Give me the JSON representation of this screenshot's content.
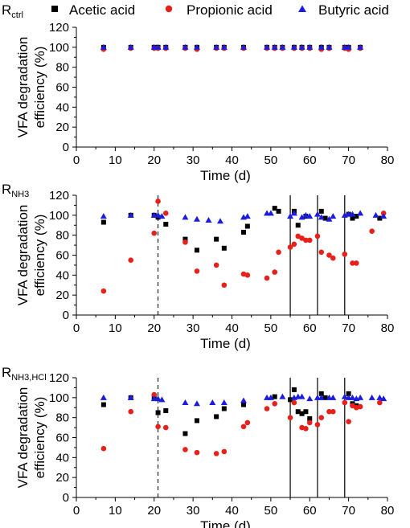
{
  "legend": {
    "panel_label_main": "R",
    "panel_label_sub": "ctrl",
    "items": [
      {
        "label": "Acetic acid",
        "marker": "square",
        "color": "#000000"
      },
      {
        "label": "Propionic acid",
        "marker": "circle",
        "color": "#e8201a"
      },
      {
        "label": "Butyric acid",
        "marker": "triangle",
        "color": "#1c1cdc"
      }
    ]
  },
  "chart_data": [
    {
      "type": "scatter",
      "panel_label_main": "",
      "panel_label_sub": "",
      "xlabel": "Time (d)",
      "ylabel_line1": "VFA degradation",
      "ylabel_line2": "efficiency (%)",
      "xlim": [
        0,
        80
      ],
      "ylim": [
        0,
        120
      ],
      "xticks": [
        0,
        10,
        20,
        30,
        40,
        50,
        60,
        70,
        80
      ],
      "yticks": [
        0,
        20,
        40,
        60,
        80,
        100,
        120
      ],
      "dashed_lines": [],
      "solid_lines": [],
      "series": [
        {
          "name": "Acetic acid",
          "marker": "square",
          "color": "#000000",
          "x": [
            7,
            14,
            20,
            21,
            23,
            28,
            31,
            36,
            38,
            43,
            49,
            51,
            53,
            56,
            58,
            60,
            63,
            65,
            69,
            70,
            73
          ],
          "y": [
            100,
            100,
            100,
            100,
            100,
            100,
            100,
            100,
            100,
            100,
            100,
            100,
            100,
            100,
            100,
            100,
            100,
            100,
            100,
            100,
            100
          ]
        },
        {
          "name": "Propionic acid",
          "marker": "circle",
          "color": "#e8201a",
          "x": [
            7,
            14,
            20,
            21,
            23,
            28,
            31,
            36,
            38,
            43,
            49,
            51,
            53,
            56,
            58,
            60,
            63,
            65,
            69,
            70,
            73
          ],
          "y": [
            98,
            99,
            99,
            99,
            99,
            99,
            98,
            99,
            99,
            99,
            99,
            99,
            99,
            99,
            99,
            99,
            98,
            99,
            99,
            98,
            99
          ]
        },
        {
          "name": "Butyric acid",
          "marker": "triangle",
          "color": "#1c1cdc",
          "x": [
            7,
            14,
            20,
            21,
            23,
            28,
            31,
            36,
            38,
            43,
            49,
            51,
            53,
            56,
            58,
            60,
            63,
            65,
            69,
            70,
            73
          ],
          "y": [
            100,
            100,
            100,
            100,
            100,
            100,
            100,
            100,
            100,
            100,
            100,
            100,
            100,
            100,
            100,
            100,
            100,
            100,
            100,
            100,
            100
          ]
        }
      ]
    },
    {
      "type": "scatter",
      "panel_label_main": "R",
      "panel_label_sub": "NH3",
      "xlabel": "Time (d)",
      "ylabel_line1": "VFA degradation",
      "ylabel_line2": "efficiency (%)",
      "xlim": [
        0,
        80
      ],
      "ylim": [
        0,
        120
      ],
      "xticks": [
        0,
        10,
        20,
        30,
        40,
        50,
        60,
        70,
        80
      ],
      "yticks": [
        0,
        20,
        40,
        60,
        80,
        100,
        120
      ],
      "dashed_lines": [
        21
      ],
      "solid_lines": [
        55,
        62,
        69
      ],
      "series": [
        {
          "name": "Acetic acid",
          "marker": "square",
          "color": "#000000",
          "x": [
            7,
            14,
            20,
            21,
            23,
            28,
            31,
            36,
            38,
            43,
            44,
            51,
            52,
            56,
            57,
            59,
            63,
            64,
            70,
            71,
            72,
            78
          ],
          "y": [
            93,
            100,
            100,
            98,
            91,
            76,
            65,
            76,
            67,
            83,
            89,
            107,
            104,
            104,
            90,
            99,
            104,
            97,
            101,
            97,
            99,
            97
          ]
        },
        {
          "name": "Propionic acid",
          "marker": "circle",
          "color": "#e8201a",
          "x": [
            7,
            14,
            20,
            21,
            23,
            28,
            31,
            36,
            38,
            43,
            44,
            49,
            51,
            52,
            55,
            56,
            57,
            58,
            59,
            60,
            62,
            63,
            65,
            66,
            69,
            71,
            72,
            76,
            79
          ],
          "y": [
            24,
            55,
            82,
            114,
            102,
            73,
            44,
            50,
            30,
            41,
            40,
            37,
            43,
            63,
            68,
            71,
            79,
            77,
            75,
            75,
            79,
            63,
            60,
            57,
            61,
            52,
            52,
            84,
            102
          ]
        },
        {
          "name": "Butyric acid",
          "marker": "triangle",
          "color": "#1c1cdc",
          "x": [
            7,
            14,
            20,
            21,
            22,
            28,
            31,
            34,
            37,
            43,
            44,
            49,
            50,
            55,
            56,
            58,
            59,
            60,
            62,
            63,
            65,
            66,
            69,
            70,
            71,
            73,
            77,
            79
          ],
          "y": [
            99,
            100,
            100,
            100,
            99,
            98,
            96,
            95,
            94,
            98,
            99,
            102,
            102,
            99,
            102,
            98,
            100,
            99,
            101,
            98,
            96,
            99,
            100,
            101,
            101,
            102,
            100,
            99
          ]
        }
      ]
    },
    {
      "type": "scatter",
      "panel_label_main": "R",
      "panel_label_sub": "NH3,HCl",
      "xlabel": "Time (d)",
      "ylabel_line1": "VFA degradation",
      "ylabel_line2": "efficiency (%)",
      "xlim": [
        0,
        80
      ],
      "ylim": [
        0,
        120
      ],
      "xticks": [
        0,
        10,
        20,
        30,
        40,
        50,
        60,
        70,
        80
      ],
      "yticks": [
        0,
        20,
        40,
        60,
        80,
        100,
        120
      ],
      "dashed_lines": [
        21
      ],
      "solid_lines": [
        55,
        62,
        69
      ],
      "series": [
        {
          "name": "Acetic acid",
          "marker": "square",
          "color": "#000000",
          "x": [
            7,
            14,
            20,
            21,
            23,
            28,
            31,
            36,
            38,
            43,
            51,
            55,
            56,
            57,
            58,
            59,
            60,
            63,
            64,
            70,
            71,
            72
          ],
          "y": [
            93,
            100,
            100,
            85,
            87,
            64,
            77,
            81,
            89,
            93,
            101,
            98,
            108,
            86,
            84,
            86,
            79,
            104,
            100,
            104,
            94,
            92
          ]
        },
        {
          "name": "Propionic acid",
          "marker": "circle",
          "color": "#e8201a",
          "x": [
            7,
            14,
            20,
            21,
            23,
            28,
            31,
            36,
            38,
            43,
            44,
            49,
            51,
            55,
            56,
            58,
            59,
            60,
            62,
            63,
            65,
            66,
            69,
            70,
            71,
            72,
            73,
            78
          ],
          "y": [
            49,
            86,
            103,
            71,
            70,
            48,
            45,
            44,
            46,
            71,
            75,
            89,
            94,
            80,
            95,
            70,
            69,
            75,
            73,
            80,
            86,
            86,
            95,
            76,
            92,
            90,
            91,
            95
          ]
        },
        {
          "name": "Butyric acid",
          "marker": "triangle",
          "color": "#1c1cdc",
          "x": [
            7,
            14,
            20,
            21,
            22,
            28,
            31,
            35,
            38,
            43,
            49,
            50,
            53,
            56,
            57,
            58,
            60,
            62,
            63,
            65,
            66,
            69,
            70,
            71,
            72,
            73,
            76,
            78,
            79
          ],
          "y": [
            100,
            100,
            99,
            99,
            98,
            95,
            94,
            95,
            95,
            97,
            100,
            100,
            101,
            100,
            101,
            101,
            99,
            100,
            100,
            100,
            100,
            101,
            100,
            100,
            99,
            100,
            100,
            100,
            99
          ]
        }
      ]
    }
  ]
}
